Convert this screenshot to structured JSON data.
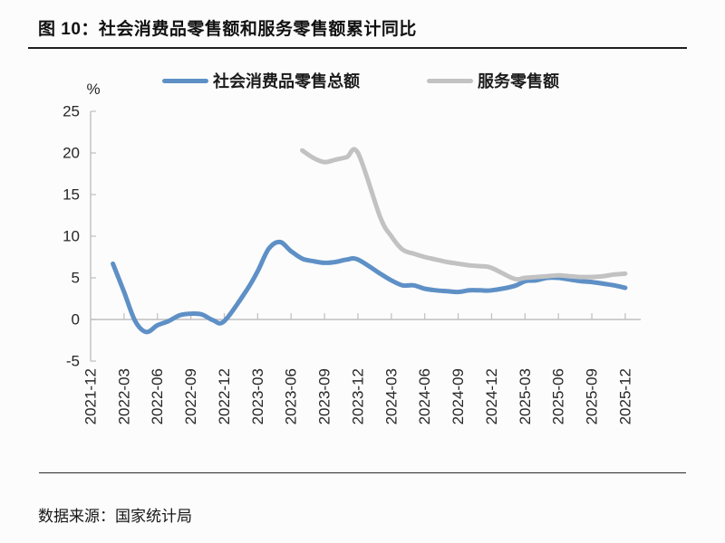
{
  "figure": {
    "title": "图 10：社会消费品零售额和服务零售额累计同比",
    "source": "数据来源：国家统计局"
  },
  "chart_data": {
    "type": "line",
    "title": "社会消费品零售额和服务零售额累计同比",
    "y_unit": "%",
    "ylim": [
      -5,
      25
    ],
    "y_ticks": [
      25,
      20,
      15,
      10,
      5,
      0,
      -5
    ],
    "grid": false,
    "legend_position": "top",
    "axis_color": "#bfbfbf",
    "tick_label_color": "#262626",
    "x_labels": [
      "2021-12",
      "2022-03",
      "2022-06",
      "2022-09",
      "2022-12",
      "2023-03",
      "2023-06",
      "2023-09",
      "2023-12",
      "2024-03",
      "2024-06",
      "2024-09",
      "2024-12",
      "2025-03",
      "2025-06",
      "2025-09",
      "2025-12"
    ],
    "series": [
      {
        "name": "社会消费品零售总额",
        "color": "#5e90c6",
        "points": [
          [
            "2022-02",
            6.7
          ],
          [
            "2022-03",
            3.3
          ],
          [
            "2022-04",
            -0.2
          ],
          [
            "2022-05",
            -1.5
          ],
          [
            "2022-06",
            -0.7
          ],
          [
            "2022-07",
            -0.2
          ],
          [
            "2022-08",
            0.5
          ],
          [
            "2022-09",
            0.7
          ],
          [
            "2022-10",
            0.6
          ],
          [
            "2022-11",
            -0.1
          ],
          [
            "2022-12",
            -0.2
          ],
          [
            "2023-02",
            3.5
          ],
          [
            "2023-03",
            5.8
          ],
          [
            "2023-04",
            8.5
          ],
          [
            "2023-05",
            9.3
          ],
          [
            "2023-06",
            8.2
          ],
          [
            "2023-07",
            7.3
          ],
          [
            "2023-08",
            7.0
          ],
          [
            "2023-09",
            6.8
          ],
          [
            "2023-10",
            6.9
          ],
          [
            "2023-11",
            7.2
          ],
          [
            "2023-12",
            7.2
          ],
          [
            "2024-02",
            5.5
          ],
          [
            "2024-03",
            4.7
          ],
          [
            "2024-04",
            4.1
          ],
          [
            "2024-05",
            4.1
          ],
          [
            "2024-06",
            3.7
          ],
          [
            "2024-07",
            3.5
          ],
          [
            "2024-08",
            3.4
          ],
          [
            "2024-09",
            3.3
          ],
          [
            "2024-10",
            3.5
          ],
          [
            "2024-11",
            3.5
          ],
          [
            "2024-12",
            3.5
          ],
          [
            "2025-02",
            4.0
          ],
          [
            "2025-03",
            4.6
          ],
          [
            "2025-04",
            4.7
          ],
          [
            "2025-05",
            5.0
          ],
          [
            "2025-06",
            5.0
          ],
          [
            "2025-07",
            4.8
          ],
          [
            "2025-08",
            4.6
          ],
          [
            "2025-09",
            4.5
          ],
          [
            "2025-10",
            4.3
          ],
          [
            "2025-11",
            4.1
          ],
          [
            "2025-12",
            3.8
          ]
        ]
      },
      {
        "name": "服务零售额",
        "color": "#c2c2c2",
        "points": [
          [
            "2023-07",
            20.3
          ],
          [
            "2023-08",
            19.4
          ],
          [
            "2023-09",
            18.9
          ],
          [
            "2023-10",
            19.2
          ],
          [
            "2023-11",
            19.5
          ],
          [
            "2023-12",
            20.0
          ],
          [
            "2024-02",
            12.3
          ],
          [
            "2024-03",
            10.0
          ],
          [
            "2024-04",
            8.4
          ],
          [
            "2024-05",
            7.9
          ],
          [
            "2024-06",
            7.5
          ],
          [
            "2024-07",
            7.2
          ],
          [
            "2024-08",
            6.9
          ],
          [
            "2024-09",
            6.7
          ],
          [
            "2024-10",
            6.5
          ],
          [
            "2024-11",
            6.4
          ],
          [
            "2024-12",
            6.2
          ],
          [
            "2025-02",
            4.9
          ],
          [
            "2025-03",
            5.0
          ],
          [
            "2025-04",
            5.1
          ],
          [
            "2025-05",
            5.2
          ],
          [
            "2025-06",
            5.3
          ],
          [
            "2025-07",
            5.2
          ],
          [
            "2025-08",
            5.1
          ],
          [
            "2025-09",
            5.1
          ],
          [
            "2025-10",
            5.2
          ],
          [
            "2025-11",
            5.4
          ],
          [
            "2025-12",
            5.5
          ]
        ]
      }
    ]
  }
}
